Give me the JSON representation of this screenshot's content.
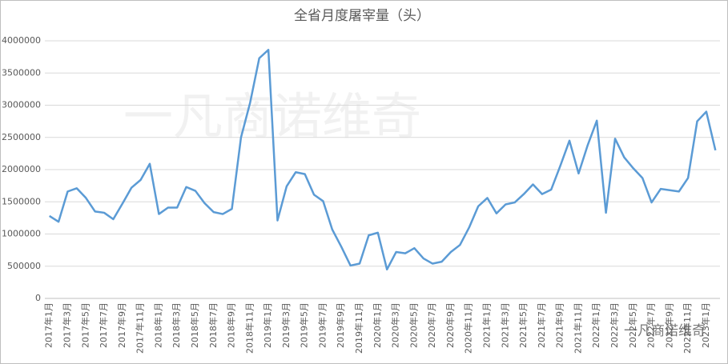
{
  "chart_data": {
    "type": "line",
    "title": "全省月度屠宰量（头）",
    "watermark": "一凡商诺维奇",
    "badge": "一凡商诺维奇",
    "categories": [
      "2017年1月",
      null,
      "2017年3月",
      null,
      "2017年5月",
      null,
      "2017年7月",
      null,
      "2017年9月",
      null,
      "2017年11月",
      null,
      "2018年1月",
      null,
      "2018年3月",
      null,
      "2018年5月",
      null,
      "2018年7月",
      null,
      "2018年9月",
      null,
      "2018年11月",
      null,
      "2019年1月",
      null,
      "2019年3月",
      null,
      "2019年5月",
      null,
      "2019年7月",
      null,
      "2019年9月",
      null,
      "2019年11月",
      null,
      "2020年1月",
      null,
      "2020年3月",
      null,
      "2020年5月",
      null,
      "2020年7月",
      null,
      "2020年9月",
      null,
      "2020年11月",
      null,
      "2021年1月",
      null,
      "2021年3月",
      null,
      "2021年5月",
      null,
      "2021年7月",
      null,
      "2021年9月",
      null,
      "2021年11月",
      null,
      "2022年1月",
      null,
      "2022年3月",
      null,
      "2022年5月",
      null,
      "2022年7月",
      null,
      "2022年9月",
      null,
      "2022年11月",
      null,
      "2023年1月",
      null
    ],
    "series": [
      {
        "color": "#5b9bd5",
        "values": [
          1280000,
          1190000,
          1660000,
          1710000,
          1560000,
          1350000,
          1330000,
          1230000,
          1470000,
          1720000,
          1840000,
          2090000,
          1310000,
          1410000,
          1410000,
          1730000,
          1670000,
          1480000,
          1340000,
          1310000,
          1390000,
          2500000,
          3040000,
          3730000,
          3860000,
          1210000,
          1740000,
          1960000,
          1930000,
          1610000,
          1510000,
          1070000,
          800000,
          510000,
          540000,
          980000,
          1020000,
          450000,
          720000,
          700000,
          780000,
          620000,
          540000,
          570000,
          720000,
          830000,
          1100000,
          1430000,
          1560000,
          1320000,
          1460000,
          1490000,
          1620000,
          1770000,
          1620000,
          1690000,
          2060000,
          2450000,
          1940000,
          2380000,
          2760000,
          1330000,
          2480000,
          2190000,
          2020000,
          1870000,
          1490000,
          1700000,
          1680000,
          1660000,
          1870000,
          2750000,
          2900000,
          2300000
        ]
      }
    ],
    "ylim": [
      0,
      4000000
    ],
    "yticks": [
      0,
      500000,
      1000000,
      1500000,
      2000000,
      2500000,
      3000000,
      3500000,
      4000000
    ],
    "grid": true
  }
}
